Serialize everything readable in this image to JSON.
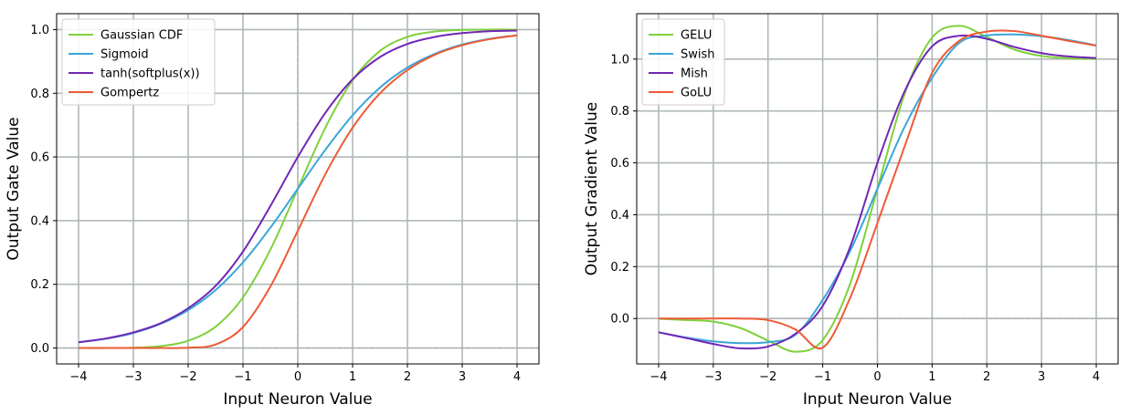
{
  "chart_data": [
    {
      "type": "line",
      "title": "",
      "xlabel": "Input Neuron Value",
      "ylabel": "Output Gate Value",
      "xlim": [
        -4.4,
        4.4
      ],
      "ylim": [
        -0.05,
        1.05
      ],
      "xticks": [
        -4,
        -3,
        -2,
        -1,
        0,
        1,
        2,
        3,
        4
      ],
      "xtick_labels": [
        "−4",
        "−3",
        "−2",
        "−1",
        "0",
        "1",
        "2",
        "3",
        "4"
      ],
      "yticks": [
        0.0,
        0.2,
        0.4,
        0.6,
        0.8,
        1.0
      ],
      "ytick_labels": [
        "0.0",
        "0.2",
        "0.4",
        "0.6",
        "0.8",
        "1.0"
      ],
      "grid": true,
      "legend_position": "top-left",
      "x": [
        -4,
        -3.5,
        -3,
        -2.5,
        -2,
        -1.5,
        -1,
        -0.5,
        0,
        0.5,
        1,
        1.5,
        2,
        2.5,
        3,
        3.5,
        4
      ],
      "series": [
        {
          "name": "Gaussian CDF",
          "color": "#7fd13b",
          "values": [
            0.0,
            0.0,
            0.001,
            0.006,
            0.023,
            0.067,
            0.159,
            0.309,
            0.5,
            0.691,
            0.841,
            0.933,
            0.977,
            0.994,
            0.999,
            1.0,
            1.0
          ]
        },
        {
          "name": "Sigmoid",
          "color": "#3aa6d8",
          "values": [
            0.018,
            0.029,
            0.047,
            0.076,
            0.119,
            0.182,
            0.269,
            0.378,
            0.5,
            0.622,
            0.731,
            0.818,
            0.881,
            0.924,
            0.953,
            0.971,
            0.982
          ]
        },
        {
          "name": "tanh(softplus(x))",
          "color": "#7027b5",
          "values": [
            0.018,
            0.03,
            0.049,
            0.078,
            0.125,
            0.195,
            0.303,
            0.446,
            0.6,
            0.738,
            0.844,
            0.914,
            0.955,
            0.977,
            0.989,
            0.995,
            0.997
          ]
        },
        {
          "name": "Gompertz",
          "color": "#ee5a35",
          "values": [
            0.0,
            0.0,
            0.0,
            0.0,
            0.001,
            0.011,
            0.066,
            0.193,
            0.368,
            0.545,
            0.692,
            0.8,
            0.873,
            0.921,
            0.951,
            0.97,
            0.982
          ]
        }
      ]
    },
    {
      "type": "line",
      "title": "",
      "xlabel": "Input Neuron Value",
      "ylabel": "Output Gradient Value",
      "xlim": [
        -4.4,
        4.4
      ],
      "ylim": [
        -0.175,
        1.175
      ],
      "xticks": [
        -4,
        -3,
        -2,
        -1,
        0,
        1,
        2,
        3,
        4
      ],
      "xtick_labels": [
        "−4",
        "−3",
        "−2",
        "−1",
        "0",
        "1",
        "2",
        "3",
        "4"
      ],
      "yticks": [
        0.0,
        0.2,
        0.4,
        0.6,
        0.8,
        1.0
      ],
      "ytick_labels": [
        "0.0",
        "0.2",
        "0.4",
        "0.6",
        "0.8",
        "1.0"
      ],
      "grid": true,
      "legend_position": "top-left",
      "x": [
        -4,
        -3.5,
        -3,
        -2.5,
        -2,
        -1.5,
        -1,
        -0.5,
        0,
        0.5,
        1,
        1.5,
        2,
        2.5,
        3,
        3.5,
        4
      ],
      "series": [
        {
          "name": "GELU",
          "color": "#7fd13b",
          "values": [
            -0.001,
            -0.006,
            -0.012,
            -0.037,
            -0.085,
            -0.128,
            -0.083,
            0.133,
            0.5,
            0.867,
            1.083,
            1.128,
            1.085,
            1.037,
            1.012,
            1.003,
            1.001
          ]
        },
        {
          "name": "Swish",
          "color": "#3aa6d8",
          "values": [
            -0.053,
            -0.073,
            -0.088,
            -0.095,
            -0.091,
            -0.063,
            0.072,
            0.26,
            0.5,
            0.74,
            0.928,
            1.063,
            1.091,
            1.095,
            1.088,
            1.073,
            1.053
          ]
        },
        {
          "name": "Mish",
          "color": "#7027b5",
          "values": [
            -0.053,
            -0.075,
            -0.098,
            -0.115,
            -0.108,
            -0.059,
            0.049,
            0.275,
            0.6,
            0.877,
            1.049,
            1.09,
            1.078,
            1.047,
            1.023,
            1.01,
            1.004
          ]
        },
        {
          "name": "GoLU",
          "color": "#ee5a35",
          "values": [
            0.0,
            0.0,
            0.0,
            0.0,
            -0.006,
            -0.042,
            -0.112,
            0.079,
            0.368,
            0.665,
            0.947,
            1.071,
            1.106,
            1.108,
            1.09,
            1.07,
            1.052
          ]
        }
      ]
    }
  ]
}
